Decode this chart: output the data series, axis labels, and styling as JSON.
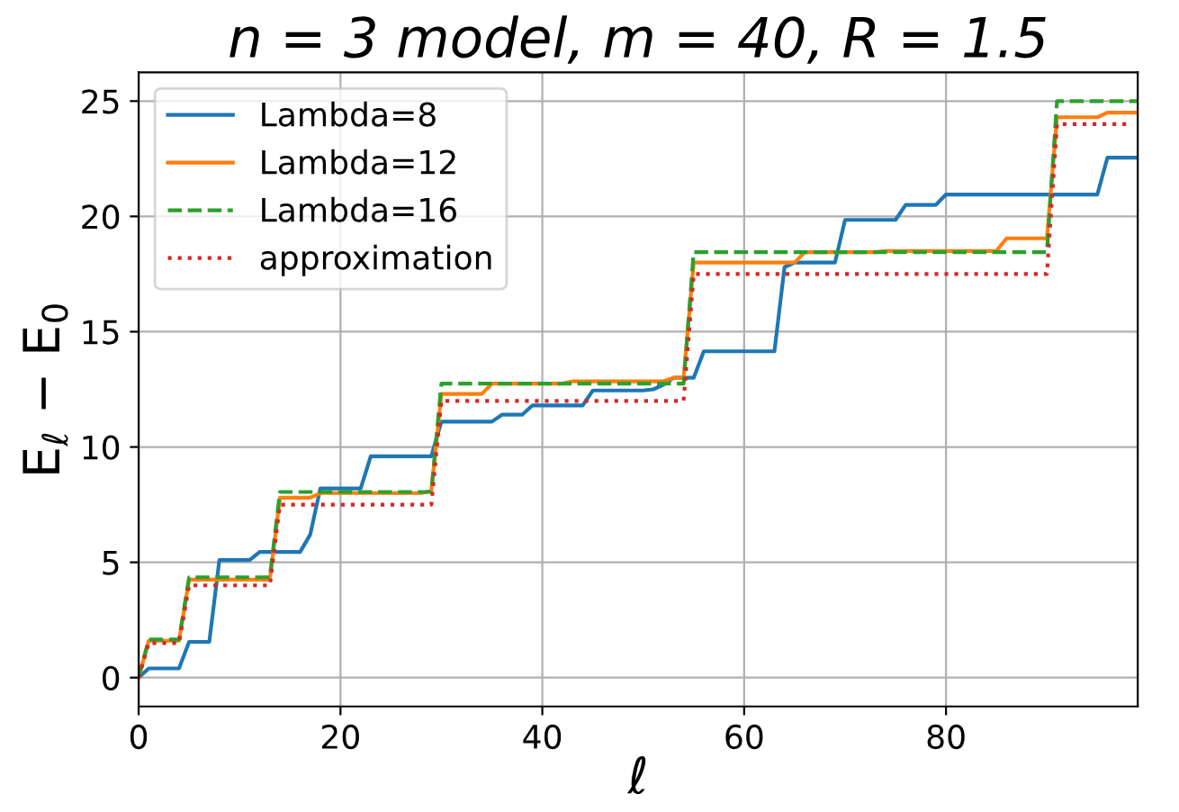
{
  "chart_data": {
    "type": "line",
    "title": "n = 3 model, m = 40, R = 1.5",
    "xlabel": "ℓ",
    "ylabel": "E$_{ℓ}$ − E$_{0}$",
    "x": [
      0,
      1,
      2,
      3,
      4,
      5,
      6,
      7,
      8,
      9,
      10,
      11,
      12,
      13,
      14,
      15,
      16,
      17,
      18,
      19,
      20,
      21,
      22,
      23,
      24,
      25,
      26,
      27,
      28,
      29,
      30,
      31,
      32,
      33,
      34,
      35,
      36,
      37,
      38,
      39,
      40,
      41,
      42,
      43,
      44,
      45,
      46,
      47,
      48,
      49,
      50,
      51,
      52,
      53,
      54,
      55,
      56,
      57,
      58,
      59,
      60,
      61,
      62,
      63,
      64,
      65,
      66,
      67,
      68,
      69,
      70,
      71,
      72,
      73,
      74,
      75,
      76,
      77,
      78,
      79,
      80,
      81,
      82,
      83,
      84,
      85,
      86,
      87,
      88,
      89,
      90,
      91,
      92,
      93,
      94,
      95,
      96,
      97,
      98,
      99
    ],
    "series": [
      {
        "name": "Lambda=8",
        "color": "#1f77b4",
        "line_style": "solid",
        "values": [
          0,
          0.4,
          0.4,
          0.4,
          0.4,
          1.55,
          1.55,
          1.55,
          5.1,
          5.1,
          5.1,
          5.1,
          5.45,
          5.45,
          5.45,
          5.45,
          5.45,
          6.2,
          8.2,
          8.2,
          8.2,
          8.2,
          8.2,
          9.6,
          9.6,
          9.6,
          9.6,
          9.6,
          9.6,
          9.6,
          11.1,
          11.1,
          11.1,
          11.1,
          11.1,
          11.1,
          11.4,
          11.4,
          11.4,
          11.8,
          11.8,
          11.8,
          11.8,
          11.8,
          11.8,
          12.45,
          12.45,
          12.45,
          12.45,
          12.45,
          12.45,
          12.5,
          12.7,
          13.0,
          13.0,
          13.0,
          14.15,
          14.15,
          14.15,
          14.15,
          14.15,
          14.15,
          14.15,
          14.15,
          17.8,
          18.0,
          18.0,
          18.0,
          18.0,
          18.0,
          19.85,
          19.85,
          19.85,
          19.85,
          19.85,
          19.85,
          20.5,
          20.5,
          20.5,
          20.5,
          20.95,
          20.95,
          20.95,
          20.95,
          20.95,
          20.95,
          20.95,
          20.95,
          20.95,
          20.95,
          20.95,
          20.95,
          20.95,
          20.95,
          20.95,
          20.95,
          22.55,
          22.55,
          22.55,
          22.55
        ]
      },
      {
        "name": "Lambda=12",
        "color": "#ff7f0e",
        "line_style": "solid",
        "values": [
          0,
          1.6,
          1.6,
          1.6,
          1.6,
          4.25,
          4.25,
          4.25,
          4.25,
          4.25,
          4.25,
          4.25,
          4.25,
          4.25,
          7.8,
          7.8,
          7.8,
          7.8,
          8.0,
          8.0,
          8.0,
          8.0,
          8.0,
          8.0,
          8.0,
          8.0,
          8.0,
          8.0,
          8.0,
          8.1,
          12.3,
          12.3,
          12.3,
          12.3,
          12.3,
          12.75,
          12.75,
          12.75,
          12.75,
          12.75,
          12.75,
          12.75,
          12.75,
          12.85,
          12.85,
          12.85,
          12.85,
          12.85,
          12.85,
          12.85,
          12.85,
          12.85,
          12.85,
          13.0,
          13.0,
          18.0,
          18.0,
          18.0,
          18.0,
          18.0,
          18.0,
          18.0,
          18.0,
          18.0,
          18.0,
          18.0,
          18.45,
          18.45,
          18.45,
          18.45,
          18.45,
          18.45,
          18.45,
          18.45,
          18.5,
          18.5,
          18.5,
          18.5,
          18.5,
          18.5,
          18.5,
          18.5,
          18.5,
          18.5,
          18.5,
          18.5,
          19.05,
          19.05,
          19.05,
          19.05,
          19.05,
          24.3,
          24.3,
          24.3,
          24.3,
          24.3,
          24.5,
          24.5,
          24.5,
          24.5
        ]
      },
      {
        "name": "Lambda=16",
        "color": "#2ca02c",
        "line_style": "dashed",
        "values": [
          0,
          1.65,
          1.65,
          1.65,
          1.65,
          4.35,
          4.35,
          4.35,
          4.35,
          4.35,
          4.35,
          4.35,
          4.35,
          4.35,
          8.05,
          8.05,
          8.05,
          8.05,
          8.05,
          8.05,
          8.05,
          8.05,
          8.05,
          8.05,
          8.05,
          8.05,
          8.05,
          8.05,
          8.05,
          8.05,
          12.75,
          12.75,
          12.75,
          12.75,
          12.75,
          12.75,
          12.75,
          12.75,
          12.75,
          12.75,
          12.75,
          12.75,
          12.75,
          12.75,
          12.75,
          12.75,
          12.75,
          12.75,
          12.75,
          12.75,
          12.75,
          12.75,
          12.75,
          12.75,
          12.75,
          18.45,
          18.45,
          18.45,
          18.45,
          18.45,
          18.45,
          18.45,
          18.45,
          18.45,
          18.45,
          18.45,
          18.45,
          18.45,
          18.45,
          18.45,
          18.45,
          18.45,
          18.45,
          18.45,
          18.45,
          18.45,
          18.45,
          18.45,
          18.45,
          18.45,
          18.45,
          18.45,
          18.45,
          18.45,
          18.45,
          18.45,
          18.45,
          18.45,
          18.45,
          18.45,
          18.45,
          25.0,
          25.0,
          25.0,
          25.0,
          25.0,
          25.0,
          25.0,
          25.0,
          25.0
        ]
      },
      {
        "name": "approximation",
        "color": "#d62728",
        "line_style": "dotted",
        "values": [
          0,
          1.5,
          1.5,
          1.5,
          1.5,
          4,
          4,
          4,
          4,
          4,
          4,
          4,
          4,
          4,
          7.5,
          7.5,
          7.5,
          7.5,
          7.5,
          7.5,
          7.5,
          7.5,
          7.5,
          7.5,
          7.5,
          7.5,
          7.5,
          7.5,
          7.5,
          7.5,
          12,
          12,
          12,
          12,
          12,
          12,
          12,
          12,
          12,
          12,
          12,
          12,
          12,
          12,
          12,
          12,
          12,
          12,
          12,
          12,
          12,
          12,
          12,
          12,
          12,
          17.5,
          17.5,
          17.5,
          17.5,
          17.5,
          17.5,
          17.5,
          17.5,
          17.5,
          17.5,
          17.5,
          17.5,
          17.5,
          17.5,
          17.5,
          17.5,
          17.5,
          17.5,
          17.5,
          17.5,
          17.5,
          17.5,
          17.5,
          17.5,
          17.5,
          17.5,
          17.5,
          17.5,
          17.5,
          17.5,
          17.5,
          17.5,
          17.5,
          17.5,
          17.5,
          17.5,
          24,
          24,
          24,
          24,
          24,
          24,
          24,
          24,
          null
        ]
      }
    ],
    "xlim": [
      0,
      99
    ],
    "ylim": [
      -1.25,
      26.25
    ],
    "xticks": [
      0,
      20,
      40,
      60,
      80
    ],
    "yticks": [
      0,
      5,
      10,
      15,
      20,
      25
    ],
    "grid": true,
    "legend": "top left",
    "marker": "none"
  }
}
